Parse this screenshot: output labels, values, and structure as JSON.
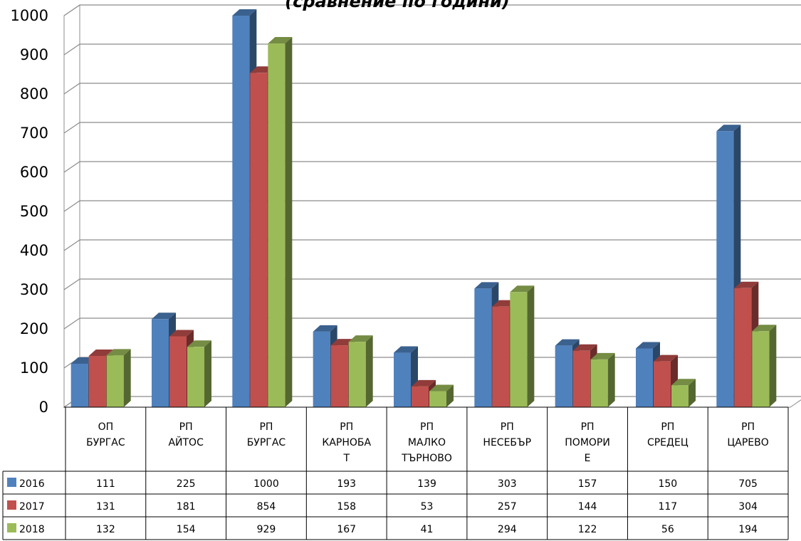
{
  "chart_data": {
    "type": "bar",
    "title": "(сравнение по години)",
    "categories": [
      [
        "ОП",
        "БУРГАС"
      ],
      [
        "РП",
        "АЙТОС"
      ],
      [
        "РП",
        "БУРГАС"
      ],
      [
        "РП",
        "КАРНОБА",
        "Т"
      ],
      [
        "РП",
        "МАЛКО",
        "ТЪРНОВО"
      ],
      [
        "РП",
        "НЕСЕБЪР"
      ],
      [
        "РП",
        "ПОМОРИ",
        "Е"
      ],
      [
        "РП",
        "СРЕДЕЦ"
      ],
      [
        "РП",
        "ЦАРЕВО"
      ]
    ],
    "series": [
      {
        "name": "2016",
        "color": "#4F81BD",
        "values": [
          111,
          225,
          1000,
          193,
          139,
          303,
          157,
          150,
          705
        ]
      },
      {
        "name": "2017",
        "color": "#C0504D",
        "values": [
          131,
          181,
          854,
          158,
          53,
          257,
          144,
          117,
          304
        ]
      },
      {
        "name": "2018",
        "color": "#9BBB59",
        "values": [
          132,
          154,
          929,
          167,
          41,
          294,
          122,
          56,
          194
        ]
      }
    ],
    "ylim": [
      0,
      1000
    ],
    "yticks": [
      0,
      100,
      200,
      300,
      400,
      500,
      600,
      700,
      800,
      900,
      1000
    ],
    "grid": true,
    "legend": "data-table-left",
    "style": "3d-clustered-column-with-data-table"
  }
}
